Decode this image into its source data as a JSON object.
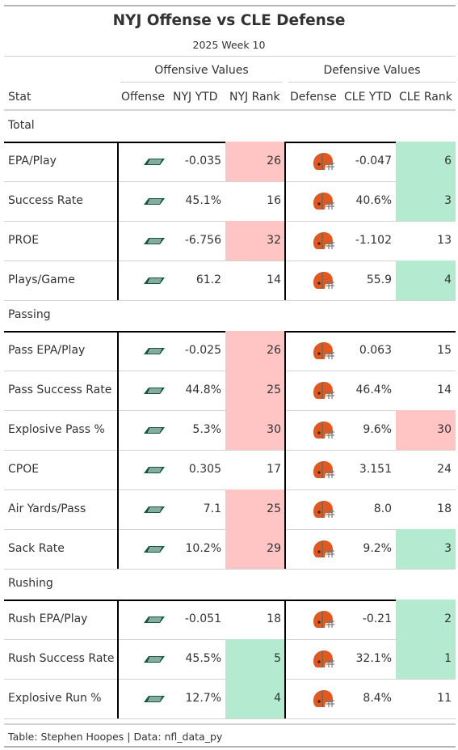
{
  "chart_data": {
    "type": "table",
    "title": "NYJ Offense vs CLE Defense",
    "subtitle": "2025 Week 10",
    "spanners": {
      "offense": "Offensive Values",
      "defense": "Defensive Values"
    },
    "columns": [
      "Stat",
      "Offense",
      "NYJ YTD",
      "NYJ Rank",
      "Defense",
      "CLE YTD",
      "CLE Rank"
    ],
    "offense_logo": "nyj-jets-logo",
    "defense_logo": "cle-browns-helmet-logo",
    "colors": {
      "bad_rank": "#ffc4c4",
      "good_rank": "#b3ead0",
      "jets_green": "#125740",
      "browns_orange": "#e2581f",
      "browns_brown": "#311d00"
    },
    "groups": [
      {
        "name": "Total",
        "rows": [
          {
            "stat": "EPA/Play",
            "nyj_ytd": "-0.035",
            "nyj_rank": 26,
            "nyj_status": "bad",
            "cle_ytd": "-0.047",
            "cle_rank": 6,
            "cle_status": "good"
          },
          {
            "stat": "Success Rate",
            "nyj_ytd": "45.1%",
            "nyj_rank": 16,
            "nyj_status": "none",
            "cle_ytd": "40.6%",
            "cle_rank": 3,
            "cle_status": "good"
          },
          {
            "stat": "PROE",
            "nyj_ytd": "-6.756",
            "nyj_rank": 32,
            "nyj_status": "bad",
            "cle_ytd": "-1.102",
            "cle_rank": 13,
            "cle_status": "none"
          },
          {
            "stat": "Plays/Game",
            "nyj_ytd": "61.2",
            "nyj_rank": 14,
            "nyj_status": "none",
            "cle_ytd": "55.9",
            "cle_rank": 4,
            "cle_status": "good"
          }
        ]
      },
      {
        "name": "Passing",
        "rows": [
          {
            "stat": "Pass EPA/Play",
            "nyj_ytd": "-0.025",
            "nyj_rank": 26,
            "nyj_status": "bad",
            "cle_ytd": "0.063",
            "cle_rank": 15,
            "cle_status": "none"
          },
          {
            "stat": "Pass Success Rate",
            "nyj_ytd": "44.8%",
            "nyj_rank": 25,
            "nyj_status": "bad",
            "cle_ytd": "46.4%",
            "cle_rank": 14,
            "cle_status": "none"
          },
          {
            "stat": "Explosive Pass %",
            "nyj_ytd": "5.3%",
            "nyj_rank": 30,
            "nyj_status": "bad",
            "cle_ytd": "9.6%",
            "cle_rank": 30,
            "cle_status": "bad"
          },
          {
            "stat": "CPOE",
            "nyj_ytd": "0.305",
            "nyj_rank": 17,
            "nyj_status": "none",
            "cle_ytd": "3.151",
            "cle_rank": 24,
            "cle_status": "none"
          },
          {
            "stat": "Air Yards/Pass",
            "nyj_ytd": "7.1",
            "nyj_rank": 25,
            "nyj_status": "bad",
            "cle_ytd": "8.0",
            "cle_rank": 18,
            "cle_status": "none"
          },
          {
            "stat": "Sack Rate",
            "nyj_ytd": "10.2%",
            "nyj_rank": 29,
            "nyj_status": "bad",
            "cle_ytd": "9.2%",
            "cle_rank": 3,
            "cle_status": "good"
          }
        ]
      },
      {
        "name": "Rushing",
        "rows": [
          {
            "stat": "Rush EPA/Play",
            "nyj_ytd": "-0.051",
            "nyj_rank": 18,
            "nyj_status": "none",
            "cle_ytd": "-0.21",
            "cle_rank": 2,
            "cle_status": "good"
          },
          {
            "stat": "Rush Success Rate",
            "nyj_ytd": "45.5%",
            "nyj_rank": 5,
            "nyj_status": "good",
            "cle_ytd": "32.1%",
            "cle_rank": 1,
            "cle_status": "good"
          },
          {
            "stat": "Explosive Run %",
            "nyj_ytd": "12.7%",
            "nyj_rank": 4,
            "nyj_status": "good",
            "cle_ytd": "8.4%",
            "cle_rank": 11,
            "cle_status": "none"
          }
        ]
      }
    ],
    "source_note": "Table: Stephen Hoopes | Data: nfl_data_py"
  }
}
